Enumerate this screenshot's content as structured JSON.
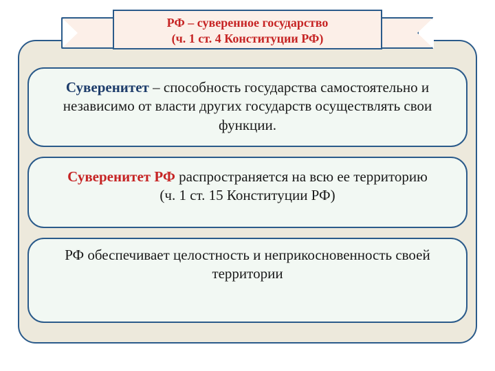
{
  "colors": {
    "slide_bg": "#ede9dc",
    "card_bg": "#f2f8f3",
    "border": "#2a5a8a",
    "banner_bg": "#fcefe8",
    "accent_red": "#c62424",
    "accent_blue": "#1e3d6b",
    "text": "#1a1a1a"
  },
  "banner": {
    "line1": "РФ – суверенное государство",
    "line2": "(ч. 1 ст. 4 Конституции РФ)"
  },
  "card1": {
    "term": "Суверенитет",
    "rest": " – способность государства самостоятельно и независимо от власти других государств осуществлять свои функции."
  },
  "card2": {
    "lead": "Суверенитет РФ",
    "rest": " распространяется на всю ее территорию",
    "cite": "(ч. 1 ст. 15 Конституции РФ)"
  },
  "card3": {
    "text": "РФ обеспечивает целостность и неприкосновенность своей территории"
  }
}
